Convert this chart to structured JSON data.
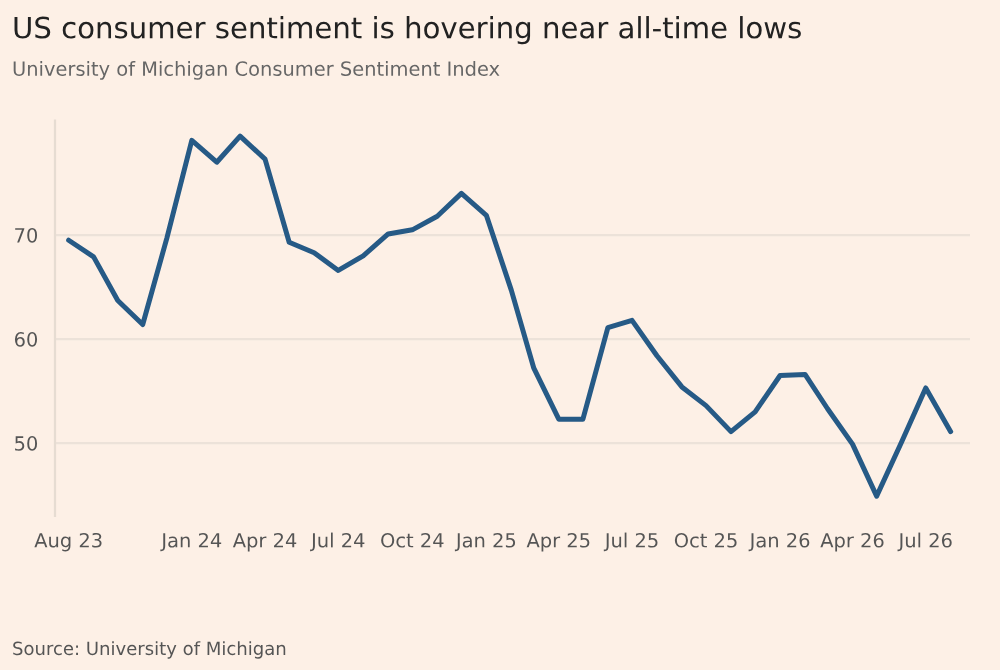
{
  "chart_data": {
    "type": "line",
    "title": "US consumer sentiment is hovering near all-time lows",
    "subtitle": "University of Michigan Consumer Sentiment Index",
    "annotations": [
      "Source: University of Michigan"
    ],
    "x": [
      "2023-08",
      "2023-09",
      "2023-10",
      "2023-11",
      "2023-12",
      "2024-01",
      "2024-02",
      "2024-03",
      "2024-04",
      "2024-05",
      "2024-06",
      "2024-07",
      "2024-08",
      "2024-09",
      "2024-10",
      "2024-11",
      "2024-12",
      "2025-01",
      "2025-02",
      "2025-03",
      "2025-04",
      "2025-05",
      "2025-06",
      "2025-07",
      "2025-08",
      "2025-09",
      "2025-10",
      "2025-11",
      "2025-12",
      "2026-01",
      "2026-02",
      "2026-03",
      "2026-04",
      "2026-05",
      "2026-06",
      "2026-07",
      "2026-08"
    ],
    "series": [
      {
        "color": "#265a86",
        "values": [
          69.5,
          67.9,
          63.7,
          61.4,
          69.7,
          79.1,
          77.0,
          79.5,
          77.3,
          69.3,
          68.3,
          66.6,
          68.0,
          70.1,
          70.5,
          71.8,
          74.0,
          71.9,
          64.7,
          57.2,
          52.3,
          52.3,
          61.1,
          61.8,
          58.4,
          55.4,
          53.6,
          51.1,
          53.0,
          56.5,
          56.6,
          53.3,
          49.9,
          44.9,
          50.1,
          55.3,
          51.1
        ]
      }
    ],
    "xlim": [
      "2023-07-15",
      "2026-08-25"
    ],
    "xticks": [
      {
        "value": "2023-08",
        "label": "Aug 23"
      },
      {
        "value": "2024-01",
        "label": "Jan 24"
      },
      {
        "value": "2024-04",
        "label": "Apr 24"
      },
      {
        "value": "2024-07",
        "label": "Jul 24"
      },
      {
        "value": "2024-10",
        "label": "Oct 24"
      },
      {
        "value": "2025-01",
        "label": "Jan 25"
      },
      {
        "value": "2025-04",
        "label": "Apr 25"
      },
      {
        "value": "2025-07",
        "label": "Jul 25"
      },
      {
        "value": "2025-10",
        "label": "Oct 25"
      },
      {
        "value": "2026-01",
        "label": "Jan 26"
      },
      {
        "value": "2026-04",
        "label": "Apr 26"
      },
      {
        "value": "2026-07",
        "label": "Jul 26"
      }
    ],
    "ylim": [
      43,
      81
    ],
    "yticks": [
      50,
      60,
      70
    ],
    "grid": "y",
    "line_style": "solid",
    "marker": "none",
    "legend": false
  }
}
